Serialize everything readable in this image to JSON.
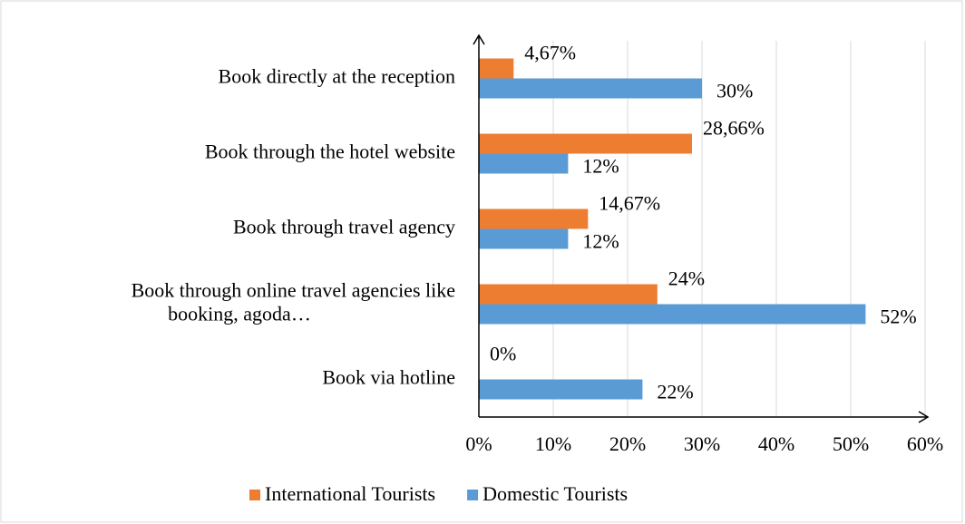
{
  "chart_data": {
    "type": "hbar",
    "categories": [
      "Book directly at the reception",
      "Book through the hotel website",
      "Book through travel agency",
      "Book through online travel agencies like\nbooking, agoda…",
      "Book via hotline"
    ],
    "series": [
      {
        "name": "International Tourists",
        "color": "#ed7d31",
        "values": [
          4.67,
          28.66,
          14.67,
          24,
          0
        ],
        "value_labels": [
          "4,67%",
          "28,66%",
          "14,67%",
          "24%",
          "0%"
        ]
      },
      {
        "name": "Domestic Tourists",
        "color": "#5b9bd5",
        "values": [
          30,
          12,
          12,
          52,
          22
        ],
        "value_labels": [
          "30%",
          "12%",
          "12%",
          "52%",
          "22%"
        ]
      }
    ],
    "xlim": [
      0,
      60
    ],
    "xticks": [
      {
        "value": 0,
        "label": "0%"
      },
      {
        "value": 10,
        "label": "10%"
      },
      {
        "value": 20,
        "label": "20%"
      },
      {
        "value": 30,
        "label": "30%"
      },
      {
        "value": 40,
        "label": "40%"
      },
      {
        "value": 50,
        "label": "50%"
      },
      {
        "value": 60,
        "label": "60%"
      }
    ],
    "grid": true,
    "legend": "bottom"
  }
}
